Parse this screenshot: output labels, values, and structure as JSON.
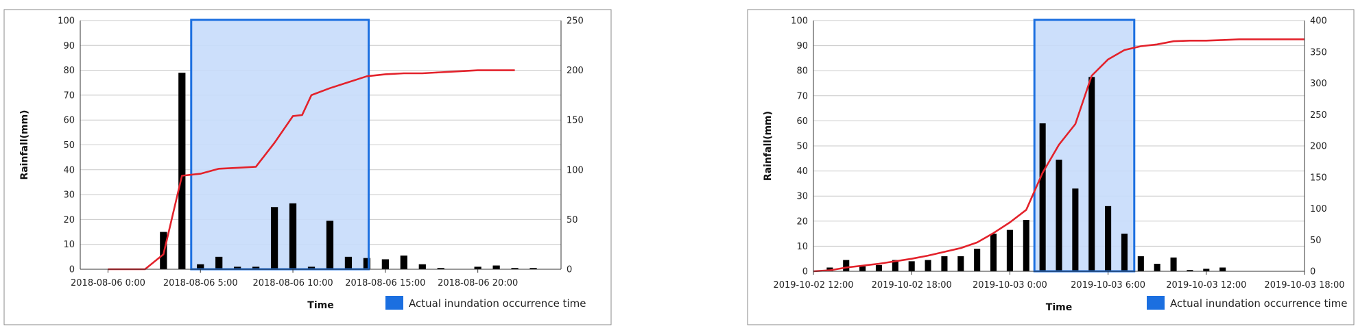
{
  "chart_data": [
    {
      "type": "bar",
      "ylabel": "Rainfall(mm)",
      "xlabel": "Time",
      "ylim": [
        0,
        100
      ],
      "y2lim": [
        0,
        250
      ],
      "y_ticks": [
        0,
        10,
        20,
        30,
        40,
        50,
        60,
        70,
        80,
        90,
        100
      ],
      "y2_ticks": [
        0,
        50,
        100,
        150,
        200,
        250
      ],
      "x_tick_labels": [
        "2018-08-06 0:00",
        "2018-08-06 5:00",
        "2018-08-06 10:00",
        "2018-08-06 15:00",
        "2018-08-06 20:00"
      ],
      "x_tick_hours": [
        0,
        5,
        10,
        15,
        20
      ],
      "x_range_hours": [
        -1.5,
        24.5
      ],
      "rainfall_hours": [
        0,
        1,
        2,
        3,
        4,
        5,
        6,
        7,
        8,
        9,
        10,
        11,
        12,
        13,
        14,
        15,
        16,
        17,
        18,
        19,
        20,
        21,
        22,
        23
      ],
      "rainfall_mm": [
        0,
        0,
        0,
        15,
        79,
        2,
        5,
        1,
        1,
        25,
        26.5,
        1,
        19.5,
        5,
        4.5,
        4,
        5.5,
        2,
        0.5,
        0,
        1,
        1.5,
        0.5,
        0.5
      ],
      "cumulative_hours": [
        0,
        1,
        2,
        3,
        4,
        4.5,
        5,
        6,
        7,
        8,
        9,
        10,
        10.5,
        11,
        12,
        13,
        14,
        15,
        16,
        17,
        18,
        19,
        20,
        21,
        22
      ],
      "cumulative_mm": [
        0,
        0,
        0,
        15,
        94,
        95,
        96,
        101,
        102,
        103,
        127,
        154,
        155,
        175,
        182,
        188,
        194,
        196,
        197,
        197,
        198,
        199,
        200,
        200,
        200
      ],
      "inundation_start_hour": 4.5,
      "inundation_end_hour": 14.1,
      "grid": true,
      "legend": {
        "position": "bottom-right",
        "label": "Actual inundation occurrence time"
      }
    },
    {
      "type": "bar",
      "ylabel": "Rainfall(mm)",
      "xlabel": "Time",
      "ylim": [
        0,
        100
      ],
      "y2lim": [
        0,
        400
      ],
      "y_ticks": [
        0,
        10,
        20,
        30,
        40,
        50,
        60,
        70,
        80,
        90,
        100
      ],
      "y2_ticks": [
        0,
        50,
        100,
        150,
        200,
        250,
        300,
        350,
        400
      ],
      "x_tick_labels": [
        "2019-10-02 12:00",
        "2019-10-02 18:00",
        "2019-10-03 0:00",
        "2019-10-03 6:00",
        "2019-10-03 12:00",
        "2019-10-03 18:00"
      ],
      "x_tick_hours": [
        12,
        18,
        24,
        30,
        36,
        42
      ],
      "x_range_hours": [
        12,
        42
      ],
      "rainfall_hours": [
        13,
        14,
        15,
        16,
        17,
        18,
        19,
        20,
        21,
        22,
        23,
        24,
        25,
        26,
        27,
        28,
        29,
        30,
        31,
        32,
        33,
        34,
        35,
        36,
        37,
        38
      ],
      "rainfall_mm": [
        1.5,
        4.5,
        2,
        2.5,
        4.5,
        4,
        4.5,
        6,
        6,
        9,
        15,
        16.5,
        20.5,
        59,
        44.5,
        33,
        77.5,
        26,
        15,
        6,
        3,
        5.5,
        0.5,
        1,
        1.5,
        0
      ],
      "cumulative_hours": [
        12,
        13,
        14,
        15,
        16,
        17,
        18,
        19,
        20,
        21,
        22,
        23,
        24,
        25,
        26,
        27,
        28,
        29,
        30,
        31,
        32,
        33,
        34,
        35,
        36,
        37,
        38,
        39,
        40,
        41,
        42
      ],
      "cumulative_mm": [
        0,
        1.5,
        6,
        9,
        12,
        16,
        20,
        25,
        31,
        37,
        46,
        61,
        78,
        98,
        157,
        202,
        235,
        312,
        338,
        353,
        359,
        362,
        367,
        368,
        368,
        369,
        370,
        370,
        370,
        370,
        370
      ],
      "inundation_start_hour": 25.5,
      "inundation_end_hour": 31.6,
      "grid": true,
      "legend": {
        "position": "bottom-right",
        "label": "Actual inundation occurrence time"
      }
    }
  ],
  "colors": {
    "bar": "#000000",
    "cumulative_line": "#e3222b",
    "highlight_fill": "#c7dbfb",
    "highlight_stroke": "#1b6fe0",
    "grid": "#c8c8c8",
    "legend_swatch": "#1b6fe0"
  }
}
